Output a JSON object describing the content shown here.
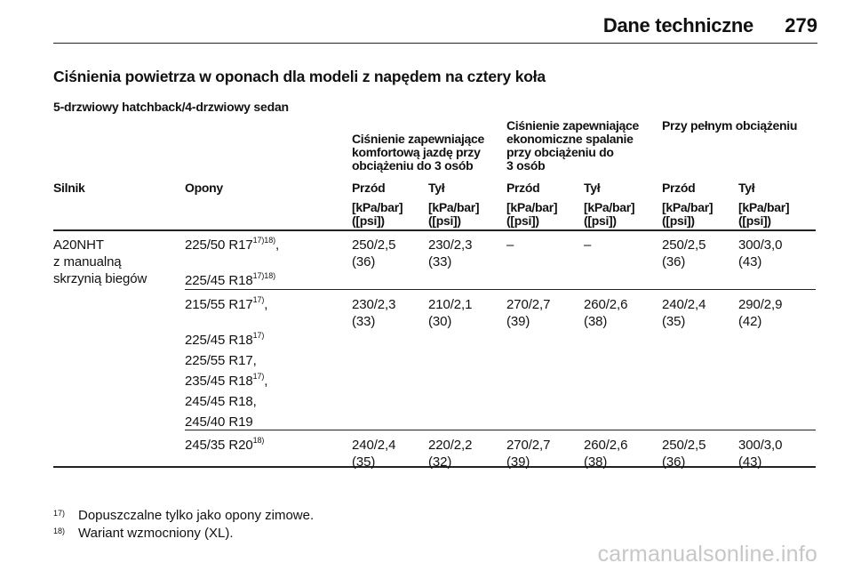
{
  "header": {
    "title": "Dane techniczne",
    "page_number": "279"
  },
  "section_title": "Ciśnienia powietrza w oponach dla modeli z napędem na cztery koła",
  "subsection_title": "5-drzwiowy hatchback/4-drzwiowy sedan",
  "groups": {
    "comfort": "Ciśnienie zapewniające\nkomfortową jazdę przy\nobciążeniu do 3 osób",
    "eco": "Ciśnienie zapewniające\nekonomiczne spalanie\nprzy obciążeniu do\n3 osób",
    "full": "Przy pełnym obciążeniu"
  },
  "columns": {
    "engine": "Silnik",
    "tyres": "Opony",
    "front": "Przód",
    "rear": "Tył",
    "unit": "[kPa/bar]\n([psi])"
  },
  "engine": "A20NHT\nz manualną\nskrzynią biegów",
  "rows": [
    {
      "tyres": [
        {
          "text": "225/50 R17",
          "sup": "17)18)",
          "suffix": ","
        },
        {
          "text": "225/45 R18",
          "sup": "17)18)",
          "suffix": ""
        }
      ],
      "values": [
        "250/2,5\n(36)",
        "230/2,3\n(33)",
        "–",
        "–",
        "250/2,5\n(36)",
        "300/3,0\n(43)"
      ]
    },
    {
      "tyres": [
        {
          "text": "215/55 R17",
          "sup": "17)",
          "suffix": ","
        },
        {
          "text": "225/45 R18",
          "sup": "17)",
          "suffix": ""
        },
        {
          "text": "225/55 R17,",
          "sup": "",
          "suffix": ""
        },
        {
          "text": "235/45 R18",
          "sup": "17)",
          "suffix": ","
        },
        {
          "text": "245/45 R18,",
          "sup": "",
          "suffix": ""
        },
        {
          "text": "245/40 R19",
          "sup": "",
          "suffix": ""
        }
      ],
      "values": [
        "230/2,3\n(33)",
        "210/2,1\n(30)",
        "270/2,7\n(39)",
        "260/2,6\n(38)",
        "240/2,4\n(35)",
        "290/2,9\n(42)"
      ]
    },
    {
      "tyres": [
        {
          "text": "245/35 R20",
          "sup": "18)",
          "suffix": ""
        }
      ],
      "values": [
        "240/2,4\n(35)",
        "220/2,2\n(32)",
        "270/2,7\n(39)",
        "260/2,6\n(38)",
        "250/2,5\n(36)",
        "300/3,0\n(43)"
      ]
    }
  ],
  "footnotes": [
    {
      "mark": "17)",
      "text": "Dopuszczalne tylko jako opony zimowe."
    },
    {
      "mark": "18)",
      "text": "Wariant wzmocniony (XL)."
    }
  ],
  "watermark": "carmanualsonline.info"
}
